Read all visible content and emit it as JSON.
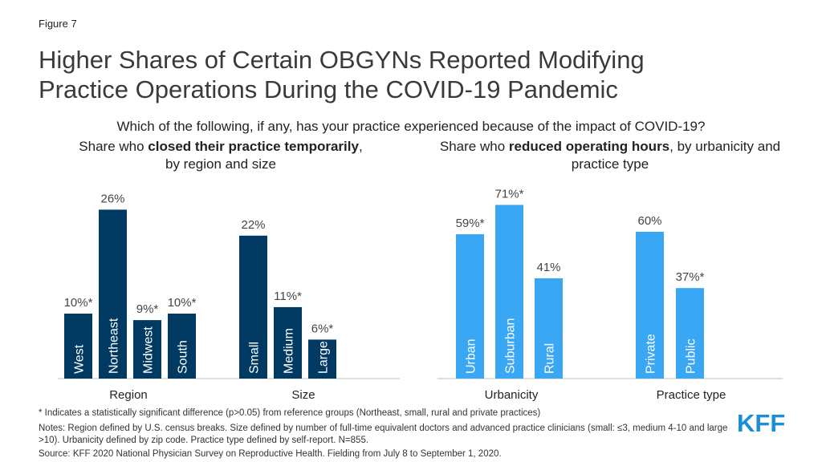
{
  "figure_label": "Figure 7",
  "title_line1": "Higher Shares of Certain OBGYNs Reported Modifying",
  "title_line2": "Practice Operations During the COVID-19 Pandemic",
  "question": "Which of the following, if any, has your practice experienced because of the impact of COVID-19?",
  "left_panel": {
    "title_pre": "Share who ",
    "title_bold": "closed their practice temporarily",
    "title_post": ", by region and size"
  },
  "right_panel": {
    "title_pre": "Share who ",
    "title_bold": "reduced operating hours",
    "title_post": ", by urbanicity and practice type"
  },
  "colors": {
    "dark_navy": "#003a63",
    "light_blue": "#3aa7f5",
    "axis": "#bfbfbf"
  },
  "chart_data": [
    {
      "type": "bar",
      "group_label": "Region",
      "color": "#003a63",
      "categories": [
        "West",
        "Northeast",
        "Midwest",
        "South"
      ],
      "values": [
        10,
        26,
        9,
        10
      ],
      "data_labels": [
        "10%*",
        "26%",
        "9%*",
        "10%*"
      ],
      "ylim": [
        0,
        30
      ]
    },
    {
      "type": "bar",
      "group_label": "Size",
      "color": "#003a63",
      "categories": [
        "Small",
        "Medium",
        "Large"
      ],
      "values": [
        22,
        11,
        6
      ],
      "data_labels": [
        "22%",
        "11%*",
        "6%*"
      ],
      "ylim": [
        0,
        30
      ]
    },
    {
      "type": "bar",
      "group_label": "Urbanicity",
      "color": "#3aa7f5",
      "categories": [
        "Urban",
        "Suburban",
        "Rural"
      ],
      "values": [
        59,
        71,
        41
      ],
      "data_labels": [
        "59%*",
        "71%*",
        "41%"
      ],
      "ylim": [
        0,
        80
      ]
    },
    {
      "type": "bar",
      "group_label": "Practice type",
      "color": "#3aa7f5",
      "categories": [
        "Private",
        "Public"
      ],
      "values": [
        60,
        37
      ],
      "data_labels": [
        "60%",
        "37%*"
      ],
      "ylim": [
        0,
        80
      ]
    }
  ],
  "footnote_significance": "* Indicates a statistically significant difference (p>0.05) from reference groups (Northeast,  small, rural and private practices)",
  "footnote_notes": "Notes: Region defined by U.S. census breaks. Size defined by number of full-time equivalent doctors and advanced practice clinicians (small: ≤3, medium 4-10 and large >10). Urbanicity defined by zip code. Practice type defined by self-report. N=855.",
  "footnote_source": "Source: KFF 2020 National Physician Survey on Reproductive Health. Fielding from July 8 to September 1, 2020.",
  "logo_text": "KFF"
}
